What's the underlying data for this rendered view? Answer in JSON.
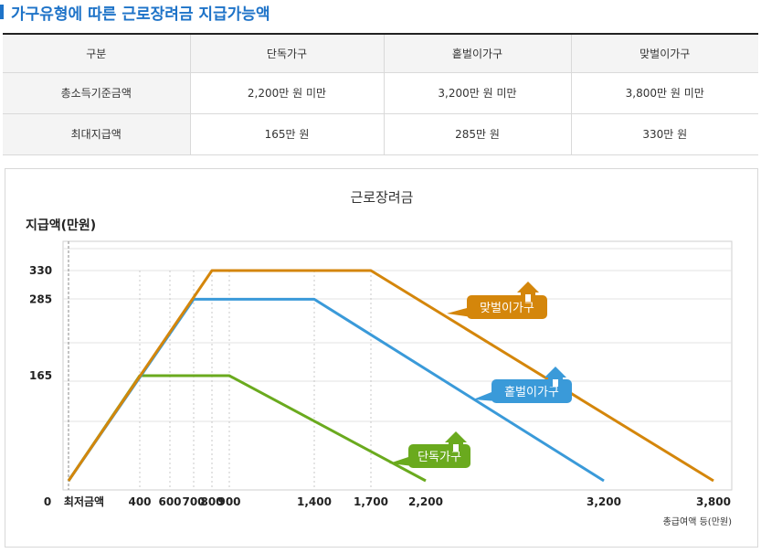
{
  "page": {
    "title": "가구유형에 따른 근로장려금 지급가능액"
  },
  "table": {
    "headers": [
      "구분",
      "단독가구",
      "홑벌이가구",
      "맞벌이가구"
    ],
    "rows": [
      [
        "총소득기준금액",
        "2,200만 원 미만",
        "3,200만 원 미만",
        "3,800만 원 미만"
      ],
      [
        "최대지급액",
        "165만 원",
        "285만 원",
        "330만 원"
      ]
    ]
  },
  "colors": {
    "single": "#6aaa1e",
    "one_earner": "#3a9ad9",
    "dual": "#d4860b",
    "title_blue": "#1e73c8"
  },
  "chart_data": {
    "type": "line",
    "title": "근로장려금",
    "ylabel": "지급액(만원)",
    "xlabel": "총급여액 등(만원)",
    "x_ticks": [
      {
        "value": 0,
        "label": "0"
      },
      {
        "value": 200,
        "label": "최저금액"
      },
      {
        "value": 400,
        "label": "400"
      },
      {
        "value": 600,
        "label": "600"
      },
      {
        "value": 700,
        "label": "700"
      },
      {
        "value": 800,
        "label": "800"
      },
      {
        "value": 900,
        "label": "900"
      },
      {
        "value": 1400,
        "label": "1,400"
      },
      {
        "value": 1700,
        "label": "1,700"
      },
      {
        "value": 2200,
        "label": "2,200"
      },
      {
        "value": 3200,
        "label": "3,200"
      },
      {
        "value": 3800,
        "label": "3,800"
      }
    ],
    "y_ticks": [
      {
        "value": 0,
        "label": "0"
      },
      {
        "value": 165,
        "label": "165"
      },
      {
        "value": 285,
        "label": "285"
      },
      {
        "value": 330,
        "label": "330"
      }
    ],
    "ylim": [
      0,
      360
    ],
    "grid": true,
    "series": [
      {
        "name": "단독가구",
        "color": "#6aaa1e",
        "points": [
          [
            0,
            0
          ],
          [
            400,
            165
          ],
          [
            900,
            165
          ],
          [
            2200,
            0
          ]
        ]
      },
      {
        "name": "홑벌이가구",
        "color": "#3a9ad9",
        "points": [
          [
            0,
            0
          ],
          [
            700,
            285
          ],
          [
            1400,
            285
          ],
          [
            3200,
            0
          ]
        ]
      },
      {
        "name": "맞벌이가구",
        "color": "#d4860b",
        "points": [
          [
            0,
            0
          ],
          [
            800,
            330
          ],
          [
            1700,
            330
          ],
          [
            3800,
            0
          ]
        ]
      }
    ]
  }
}
